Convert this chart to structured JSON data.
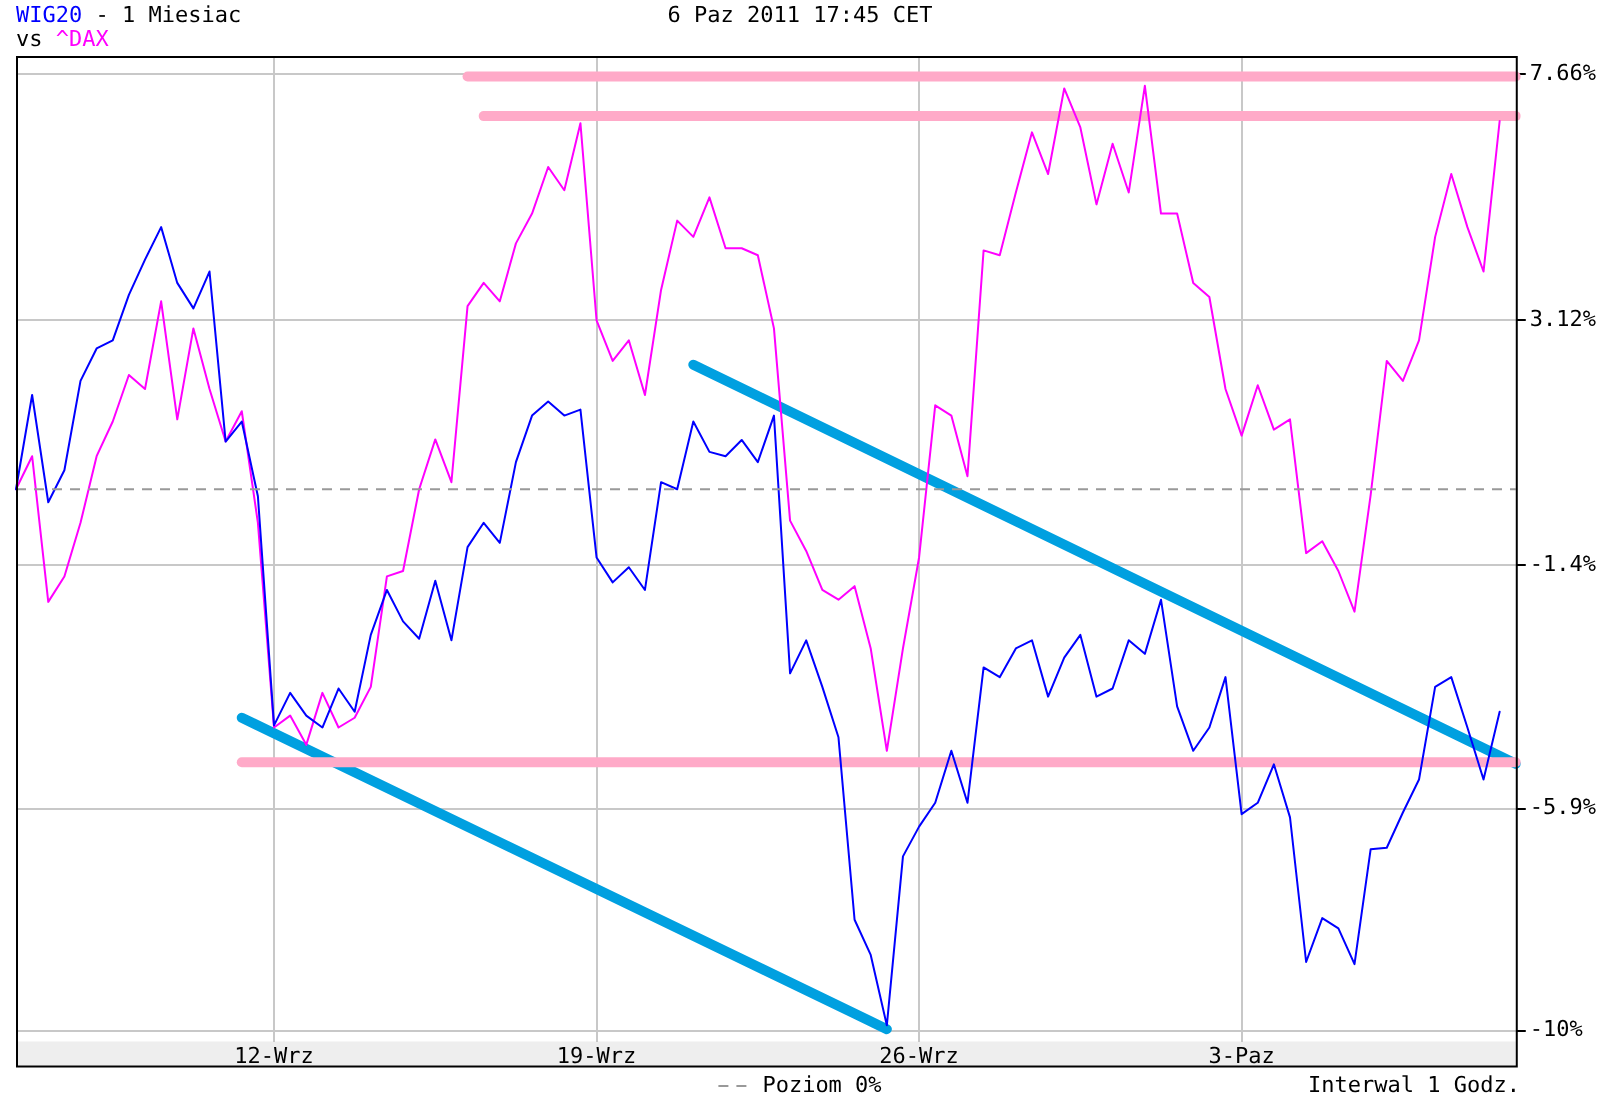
{
  "chart_data": {
    "type": "line",
    "title": "6 Paz 2011 17:45 CET",
    "subtitle": "- 1 Miesiac",
    "annotations": [
      "vs",
      "Interwal 1 Godz."
    ],
    "legend": "bottom",
    "grid": true,
    "marker": "none",
    "line_style": "solid",
    "categories": [
      null,
      null,
      null,
      null,
      null,
      null,
      null,
      null,
      null,
      null,
      null,
      null,
      null,
      null,
      null,
      null,
      "12-Wrz",
      null,
      null,
      null,
      null,
      null,
      null,
      null,
      null,
      null,
      null,
      null,
      null,
      null,
      null,
      null,
      null,
      null,
      null,
      null,
      "19-Wrz",
      null,
      null,
      null,
      null,
      null,
      null,
      null,
      null,
      null,
      null,
      null,
      null,
      null,
      null,
      null,
      null,
      null,
      null,
      null,
      "26-Wrz",
      null,
      null,
      null,
      null,
      null,
      null,
      null,
      null,
      null,
      null,
      null,
      null,
      null,
      null,
      null,
      null,
      null,
      null,
      null,
      "3-Paz",
      null,
      null,
      null,
      null,
      null,
      null,
      null,
      null,
      null,
      null,
      null,
      null,
      null,
      null,
      null,
      null,
      null
    ],
    "ylim": [
      -10.2,
      8.0
    ],
    "yticks": [
      {
        "value": -10,
        "label": "-10%"
      },
      {
        "value": -5.9,
        "label": "-5.9%"
      },
      {
        "value": -1.4,
        "label": "-1.4%"
      },
      {
        "value": 3.12,
        "label": "3.12%"
      },
      {
        "value": 7.66,
        "label": "7.66%"
      }
    ],
    "ref_lines": [
      {
        "axis": "y",
        "value": 0,
        "label": "Poziom 0%",
        "color": "#999999",
        "line_style": "dashed"
      }
    ],
    "series": [
      {
        "name": "WIG20",
        "color": "#0000ff",
        "values": [
          0.0,
          1.74,
          -0.24,
          0.35,
          2.0,
          2.6,
          2.75,
          3.59,
          4.24,
          4.84,
          3.81,
          3.34,
          4.02,
          0.88,
          1.25,
          -0.13,
          -4.36,
          -3.76,
          -4.18,
          -4.4,
          -3.68,
          -4.11,
          -2.69,
          -1.86,
          -2.44,
          -2.76,
          -1.69,
          -2.79,
          -1.07,
          -0.62,
          -0.99,
          0.5,
          1.36,
          1.62,
          1.36,
          1.47,
          -1.26,
          -1.72,
          -1.44,
          -1.86,
          0.13,
          0.0,
          1.25,
          0.69,
          0.61,
          0.91,
          0.5,
          1.36,
          -3.4,
          -2.79,
          -3.65,
          -4.58,
          -7.95,
          -8.6,
          -9.9,
          -6.78,
          -6.23,
          -5.79,
          -4.83,
          -5.79,
          -3.29,
          -3.47,
          -2.94,
          -2.79,
          -3.83,
          -3.11,
          -2.69,
          -3.83,
          -3.68,
          -2.79,
          -3.04,
          -2.04,
          -4.01,
          -4.83,
          -4.4,
          -3.47,
          -6.0,
          -5.79,
          -5.08,
          -6.06,
          -8.73,
          -7.92,
          -8.11,
          -8.77,
          -6.65,
          -6.62,
          -5.97,
          -5.36,
          -3.65,
          -3.47,
          -4.4,
          -5.36,
          -4.11,
          null
        ]
      },
      {
        "name": "^DAX",
        "color": "#ff00ff",
        "values": [
          0.0,
          0.61,
          -2.08,
          -1.61,
          -0.62,
          0.61,
          1.25,
          2.11,
          1.85,
          3.47,
          1.29,
          2.97,
          1.85,
          0.88,
          1.44,
          -0.62,
          -4.4,
          -4.18,
          -4.72,
          -3.76,
          -4.4,
          -4.22,
          -3.65,
          -1.61,
          -1.51,
          0.0,
          0.92,
          0.13,
          3.38,
          3.81,
          3.47,
          4.54,
          5.09,
          5.95,
          5.52,
          6.76,
          3.12,
          2.37,
          2.75,
          1.74,
          3.68,
          4.96,
          4.66,
          5.39,
          4.45,
          4.45,
          4.32,
          2.97,
          -0.58,
          -1.14,
          -1.86,
          -2.04,
          -1.79,
          -2.94,
          -4.83,
          -2.94,
          -1.26,
          1.55,
          1.36,
          0.24,
          4.41,
          4.32,
          5.48,
          6.59,
          5.82,
          7.4,
          6.68,
          5.26,
          6.38,
          5.48,
          7.45,
          5.09,
          5.09,
          3.81,
          3.55,
          1.85,
          0.99,
          1.92,
          1.1,
          1.29,
          -1.18,
          -0.96,
          -1.51,
          -2.26,
          -0.11,
          2.37,
          2.0,
          2.75,
          4.66,
          5.82,
          4.84,
          4.02,
          6.8,
          null
        ]
      },
      {
        "color": "#ffaac8",
        "values": [
          null,
          null,
          null,
          null,
          null,
          null,
          null,
          null,
          null,
          null,
          null,
          null,
          null,
          null,
          null,
          null,
          null,
          null,
          null,
          null,
          null,
          null,
          null,
          null,
          null,
          null,
          null,
          null,
          7.62,
          null,
          null,
          null,
          null,
          null,
          null,
          null,
          null,
          null,
          null,
          null,
          null,
          null,
          null,
          null,
          null,
          null,
          null,
          null,
          null,
          null,
          null,
          null,
          null,
          null,
          null,
          null,
          null,
          null,
          null,
          null,
          null,
          null,
          null,
          null,
          null,
          null,
          null,
          null,
          null,
          null,
          null,
          null,
          null,
          null,
          null,
          null,
          null,
          null,
          null,
          null,
          null,
          null,
          null,
          null,
          null,
          null,
          null,
          null,
          null,
          null,
          null,
          null,
          null,
          7.62
        ]
      },
      {
        "color": "#ffaac8",
        "values": [
          null,
          null,
          null,
          null,
          null,
          null,
          null,
          null,
          null,
          null,
          null,
          null,
          null,
          null,
          null,
          null,
          null,
          null,
          null,
          null,
          null,
          null,
          null,
          null,
          null,
          null,
          null,
          null,
          null,
          6.89,
          null,
          null,
          null,
          null,
          null,
          null,
          null,
          null,
          null,
          null,
          null,
          null,
          null,
          null,
          null,
          null,
          null,
          null,
          null,
          null,
          null,
          null,
          null,
          null,
          null,
          null,
          null,
          null,
          null,
          null,
          null,
          null,
          null,
          null,
          null,
          null,
          null,
          null,
          null,
          null,
          null,
          null,
          null,
          null,
          null,
          null,
          null,
          null,
          null,
          null,
          null,
          null,
          null,
          null,
          null,
          null,
          null,
          null,
          null,
          null,
          null,
          null,
          null,
          6.89
        ]
      },
      {
        "color": "#ffaac8",
        "values": [
          null,
          null,
          null,
          null,
          null,
          null,
          null,
          null,
          null,
          null,
          null,
          null,
          null,
          null,
          -5.04,
          null,
          null,
          null,
          null,
          null,
          null,
          null,
          null,
          null,
          null,
          null,
          null,
          null,
          null,
          null,
          null,
          null,
          null,
          null,
          null,
          null,
          null,
          null,
          null,
          null,
          null,
          null,
          null,
          null,
          null,
          null,
          null,
          null,
          null,
          null,
          null,
          null,
          null,
          null,
          null,
          null,
          null,
          null,
          null,
          null,
          null,
          null,
          null,
          null,
          null,
          null,
          null,
          null,
          null,
          null,
          null,
          null,
          null,
          null,
          null,
          null,
          null,
          null,
          null,
          null,
          null,
          null,
          null,
          null,
          null,
          null,
          null,
          null,
          null,
          null,
          null,
          null,
          null,
          -5.04
        ]
      },
      {
        "color": "#00a0e0",
        "values": [
          null,
          null,
          null,
          null,
          null,
          null,
          null,
          null,
          null,
          null,
          null,
          null,
          null,
          null,
          -4.22,
          null,
          null,
          null,
          null,
          null,
          null,
          null,
          null,
          null,
          null,
          null,
          null,
          null,
          null,
          null,
          null,
          null,
          null,
          null,
          null,
          null,
          null,
          null,
          null,
          null,
          null,
          null,
          null,
          null,
          null,
          null,
          null,
          null,
          null,
          null,
          null,
          null,
          null,
          null,
          -9.97,
          null,
          null,
          null,
          null,
          null,
          null,
          null,
          null,
          null,
          null,
          null,
          null,
          null,
          null,
          null,
          null,
          null,
          null,
          null,
          null,
          null,
          null,
          null,
          null,
          null,
          null,
          null,
          null,
          null,
          null,
          null,
          null,
          null,
          null,
          null,
          null,
          null,
          null,
          null
        ]
      },
      {
        "color": "#00a0e0",
        "values": [
          null,
          null,
          null,
          null,
          null,
          null,
          null,
          null,
          null,
          null,
          null,
          null,
          null,
          null,
          null,
          null,
          null,
          null,
          null,
          null,
          null,
          null,
          null,
          null,
          null,
          null,
          null,
          null,
          null,
          null,
          null,
          null,
          null,
          null,
          null,
          null,
          null,
          null,
          null,
          null,
          null,
          null,
          2.3,
          null,
          null,
          null,
          null,
          null,
          null,
          null,
          null,
          null,
          null,
          null,
          null,
          null,
          null,
          null,
          null,
          null,
          null,
          null,
          null,
          null,
          null,
          null,
          null,
          null,
          null,
          null,
          null,
          null,
          null,
          null,
          null,
          null,
          null,
          null,
          null,
          null,
          null,
          null,
          null,
          null,
          null,
          null,
          null,
          null,
          null,
          null,
          null,
          null,
          null,
          -5.07
        ]
      }
    ]
  }
}
